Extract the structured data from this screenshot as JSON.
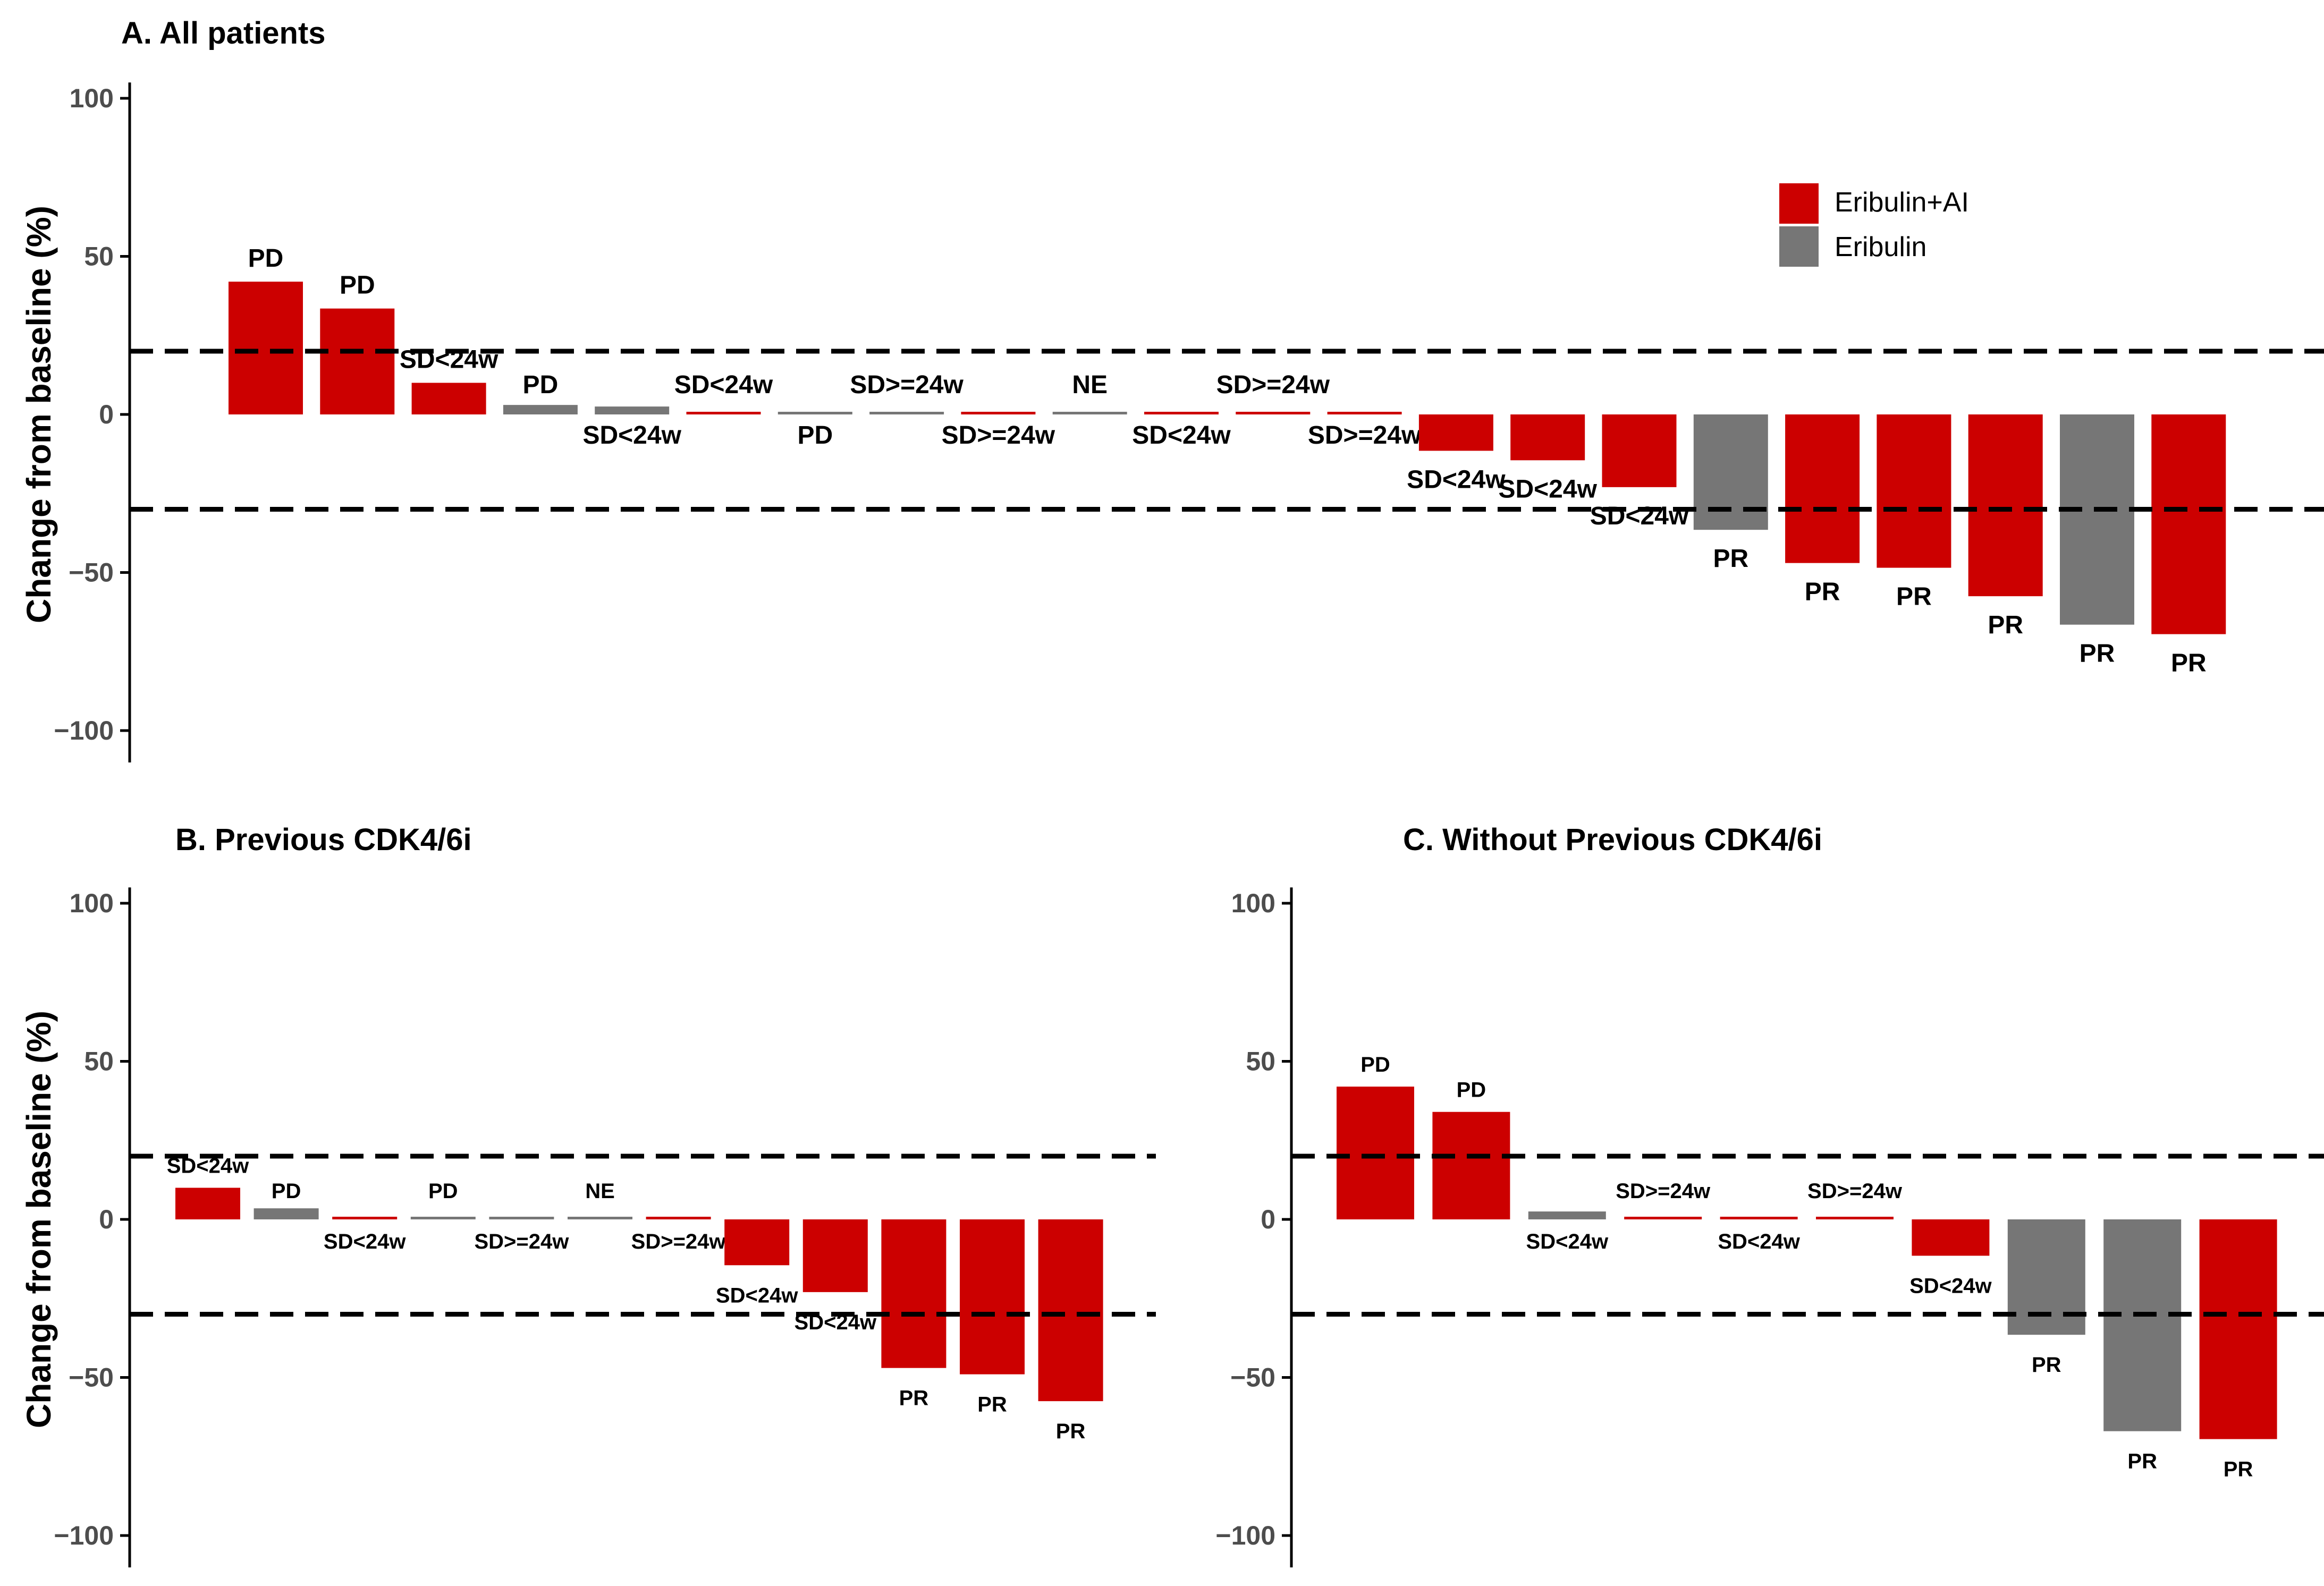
{
  "legend": [
    {
      "label": "Eribulin+AI",
      "color": "#cc0000"
    },
    {
      "label": "Eribulin",
      "color": "#767676"
    }
  ],
  "colors": {
    "Eribulin+AI": "#cc0000",
    "Eribulin": "#767676",
    "axis": "#000000",
    "tick_label": "#4d4d4d"
  },
  "chart_data": [
    {
      "type": "bar",
      "title": "A. All patients",
      "ylabel": "Change from baseline (%)",
      "xlabel": "",
      "ylim": [
        -105,
        105
      ],
      "yticks": [
        100,
        50,
        0,
        -50,
        -100
      ],
      "yticklabels": [
        "100",
        "50",
        "0",
        "−100"
      ],
      "ytick_neg50": "−50",
      "reference_lines": [
        20,
        -30
      ],
      "bars": [
        {
          "value": 42,
          "label": "PD",
          "group": "Eribulin+AI"
        },
        {
          "value": 33.5,
          "label": "PD",
          "group": "Eribulin+AI"
        },
        {
          "value": 10,
          "label": "SD<24w",
          "group": "Eribulin+AI"
        },
        {
          "value": 3,
          "label": "PD",
          "group": "Eribulin"
        },
        {
          "value": 2.5,
          "label": "SD<24w",
          "group": "Eribulin"
        },
        {
          "value": 0.5,
          "label": "SD<24w",
          "group": "Eribulin+AI"
        },
        {
          "value": 0.5,
          "label": "PD",
          "group": "Eribulin"
        },
        {
          "value": 0.3,
          "label": "SD>=24w",
          "group": "Eribulin"
        },
        {
          "value": 0.5,
          "label": "SD>=24w",
          "group": "Eribulin+AI"
        },
        {
          "value": 0.3,
          "label": "NE",
          "group": "Eribulin"
        },
        {
          "value": 0.5,
          "label": "SD<24w",
          "group": "Eribulin+AI"
        },
        {
          "value": 0.5,
          "label": "SD>=24w",
          "group": "Eribulin+AI"
        },
        {
          "value": 0.5,
          "label": "SD>=24w",
          "group": "Eribulin+AI"
        },
        {
          "value": -11.5,
          "label": "SD<24w",
          "group": "Eribulin+AI"
        },
        {
          "value": -14.5,
          "label": "SD<24w",
          "group": "Eribulin+AI"
        },
        {
          "value": -23,
          "label": "SD<24w",
          "group": "Eribulin+AI"
        },
        {
          "value": -36.5,
          "label": "PR",
          "group": "Eribulin"
        },
        {
          "value": -47,
          "label": "PR",
          "group": "Eribulin+AI"
        },
        {
          "value": -48.5,
          "label": "PR",
          "group": "Eribulin+AI"
        },
        {
          "value": -57.5,
          "label": "PR",
          "group": "Eribulin+AI"
        },
        {
          "value": -66.5,
          "label": "PR",
          "group": "Eribulin"
        },
        {
          "value": -69.5,
          "label": "PR",
          "group": "Eribulin+AI"
        }
      ]
    },
    {
      "type": "bar",
      "title": "B. Previous CDK4/6i",
      "ylabel": "Change from baseline (%)",
      "xlabel": "",
      "ylim": [
        -105,
        105
      ],
      "yticks": [
        100,
        50,
        0,
        -50,
        -100
      ],
      "reference_lines": [
        20,
        -30
      ],
      "bars": [
        {
          "value": 10,
          "label": "SD<24w",
          "group": "Eribulin+AI"
        },
        {
          "value": 3.5,
          "label": "PD",
          "group": "Eribulin"
        },
        {
          "value": 0.5,
          "label": "SD<24w",
          "group": "Eribulin+AI"
        },
        {
          "value": 0.5,
          "label": "PD",
          "group": "Eribulin"
        },
        {
          "value": 0.3,
          "label": "SD>=24w",
          "group": "Eribulin"
        },
        {
          "value": 0.3,
          "label": "NE",
          "group": "Eribulin"
        },
        {
          "value": 0.5,
          "label": "SD>=24w",
          "group": "Eribulin+AI"
        },
        {
          "value": -14.5,
          "label": "SD<24w",
          "group": "Eribulin+AI"
        },
        {
          "value": -23,
          "label": "SD<24w",
          "group": "Eribulin+AI"
        },
        {
          "value": -47,
          "label": "PR",
          "group": "Eribulin+AI"
        },
        {
          "value": -49,
          "label": "PR",
          "group": "Eribulin+AI"
        },
        {
          "value": -57.5,
          "label": "PR",
          "group": "Eribulin+AI"
        }
      ]
    },
    {
      "type": "bar",
      "title": "C. Without Previous CDK4/6i",
      "ylabel": "",
      "xlabel": "",
      "ylim": [
        -105,
        105
      ],
      "yticks": [
        100,
        50,
        0,
        -50,
        -100
      ],
      "reference_lines": [
        20,
        -30
      ],
      "bars": [
        {
          "value": 42,
          "label": "PD",
          "group": "Eribulin+AI"
        },
        {
          "value": 34,
          "label": "PD",
          "group": "Eribulin+AI"
        },
        {
          "value": 2.5,
          "label": "SD<24w",
          "group": "Eribulin"
        },
        {
          "value": 0.5,
          "label": "SD>=24w",
          "group": "Eribulin+AI"
        },
        {
          "value": 0.5,
          "label": "SD<24w",
          "group": "Eribulin+AI"
        },
        {
          "value": 0.5,
          "label": "SD>=24w",
          "group": "Eribulin+AI"
        },
        {
          "value": -11.5,
          "label": "SD<24w",
          "group": "Eribulin+AI"
        },
        {
          "value": -36.5,
          "label": "PR",
          "group": "Eribulin"
        },
        {
          "value": -67,
          "label": "PR",
          "group": "Eribulin"
        },
        {
          "value": -69.5,
          "label": "PR",
          "group": "Eribulin+AI"
        }
      ]
    }
  ]
}
